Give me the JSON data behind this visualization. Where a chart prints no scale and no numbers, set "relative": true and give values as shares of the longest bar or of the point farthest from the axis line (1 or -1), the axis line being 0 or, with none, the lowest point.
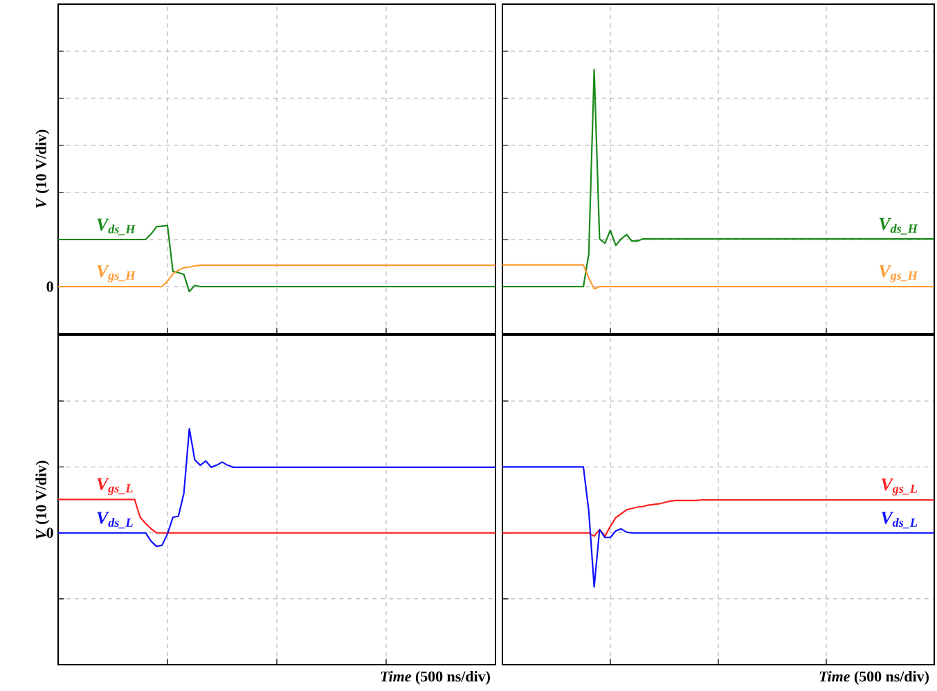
{
  "chart_data": [
    {
      "type": "line",
      "relative": true,
      "ylabel": "*V* (10 V/div)",
      "annotations": [
        "0"
      ],
      "grid": true,
      "categories": [
        null,
        null,
        null,
        null,
        null,
        null,
        null,
        null,
        null,
        null,
        null,
        null,
        null,
        null,
        null,
        null,
        null,
        null,
        null,
        null,
        null,
        null,
        null,
        null,
        null,
        null,
        null,
        null,
        null,
        null,
        null,
        null,
        null,
        null,
        null,
        null,
        null,
        null,
        null,
        null,
        null,
        null,
        null,
        null,
        null,
        null,
        null,
        null,
        null,
        null,
        null,
        null,
        null,
        null,
        null,
        null,
        null,
        null,
        null,
        null,
        null,
        null,
        null,
        null,
        null,
        null,
        null,
        null,
        null,
        null,
        null,
        null,
        null,
        null,
        null,
        null,
        null,
        null,
        null,
        null,
        null
      ],
      "series": [
        {
          "name": "V$_{ds_H}$",
          "color": "#1a8a1a",
          "values": [
            0.77,
            0.77,
            0.77,
            0.77,
            0.77,
            0.77,
            0.77,
            0.77,
            0.77,
            0.77,
            0.77,
            0.77,
            0.77,
            0.77,
            0.77,
            0.77,
            0.77,
            0.86,
            0.98,
            0.99,
            1,
            0.25,
            0.23,
            0.2,
            -0.08,
            0.02,
            0,
            0,
            0,
            0,
            0,
            0,
            0,
            0,
            0,
            0,
            0,
            0,
            0,
            0,
            0,
            0,
            0,
            0,
            0,
            0,
            0,
            0,
            0,
            0,
            0,
            0,
            0,
            0,
            0,
            0,
            0,
            0,
            0,
            0,
            0,
            0,
            0,
            0,
            0,
            0,
            0,
            0,
            0,
            0,
            0,
            0,
            0,
            0,
            0,
            0,
            0,
            0,
            0,
            0,
            0
          ]
        },
        {
          "name": "V$_{gs_H}$",
          "color": "#ff9a2e",
          "values": [
            0,
            0,
            0,
            0,
            0,
            0,
            0,
            0,
            0,
            0,
            0,
            0,
            0,
            0,
            0,
            0,
            0,
            0,
            0,
            0,
            0.09,
            0.21,
            0.27,
            0.31,
            0.32,
            0.34,
            0.35,
            0.35,
            0.35,
            0.35,
            0.35,
            0.35,
            0.35,
            0.35,
            0.35,
            0.35,
            0.35,
            0.35,
            0.35,
            0.35,
            0.35,
            0.35,
            0.35,
            0.35,
            0.35,
            0.35,
            0.35,
            0.35,
            0.35,
            0.35,
            0.35,
            0.35,
            0.35,
            0.35,
            0.35,
            0.35,
            0.35,
            0.35,
            0.35,
            0.35,
            0.35,
            0.35,
            0.35,
            0.35,
            0.35,
            0.35,
            0.35,
            0.35,
            0.35,
            0.35,
            0.35,
            0.35,
            0.35,
            0.35,
            0.35,
            0.35,
            0.35,
            0.35,
            0.35,
            0.35,
            0.35
          ]
        }
      ]
    },
    {
      "type": "line",
      "relative": true,
      "grid": true,
      "categories": [
        null,
        null,
        null,
        null,
        null,
        null,
        null,
        null,
        null,
        null,
        null,
        null,
        null,
        null,
        null,
        null,
        null,
        null,
        null,
        null,
        null,
        null,
        null,
        null,
        null,
        null,
        null,
        null,
        null,
        null,
        null,
        null,
        null,
        null,
        null,
        null,
        null,
        null,
        null,
        null,
        null,
        null,
        null,
        null,
        null,
        null,
        null,
        null,
        null,
        null,
        null,
        null,
        null,
        null,
        null,
        null,
        null,
        null,
        null,
        null,
        null,
        null,
        null,
        null,
        null,
        null,
        null,
        null,
        null,
        null,
        null,
        null,
        null,
        null,
        null,
        null,
        null,
        null,
        null,
        null,
        null
      ],
      "series": [
        {
          "name": "V$_{ds_H}$",
          "color": "#1a8a1a",
          "values": [
            0,
            0,
            0,
            0,
            0,
            0,
            0,
            0,
            0,
            0,
            0,
            0,
            0,
            0,
            0,
            0,
            0.15,
            1,
            0.22,
            0.2,
            0.26,
            0.19,
            0.22,
            0.24,
            0.21,
            0.21,
            0.22,
            0.22,
            0.22,
            0.22,
            0.22,
            0.22,
            0.22,
            0.22,
            0.22,
            0.22,
            0.22,
            0.22,
            0.22,
            0.22,
            0.22,
            0.22,
            0.22,
            0.22,
            0.22,
            0.22,
            0.22,
            0.22,
            0.22,
            0.22,
            0.22,
            0.22,
            0.22,
            0.22,
            0.22,
            0.22,
            0.22,
            0.22,
            0.22,
            0.22,
            0.22,
            0.22,
            0.22,
            0.22,
            0.22,
            0.22,
            0.22,
            0.22,
            0.22,
            0.22,
            0.22,
            0.22,
            0.22,
            0.22,
            0.22,
            0.22,
            0.22,
            0.22,
            0.22,
            0.22,
            0.22
          ]
        },
        {
          "name": "V$_{gs_H}$",
          "color": "#ff9a2e",
          "values": [
            0.1,
            0.1,
            0.1,
            0.1,
            0.1,
            0.1,
            0.1,
            0.1,
            0.1,
            0.1,
            0.1,
            0.1,
            0.1,
            0.1,
            0.1,
            0.1,
            0.04,
            -0.01,
            0,
            0,
            0,
            0,
            0,
            0,
            0,
            0,
            0,
            0,
            0,
            0,
            0,
            0,
            0,
            0,
            0,
            0,
            0,
            0,
            0,
            0,
            0,
            0,
            0,
            0,
            0,
            0,
            0,
            0,
            0,
            0,
            0,
            0,
            0,
            0,
            0,
            0,
            0,
            0,
            0,
            0,
            0,
            0,
            0,
            0,
            0,
            0,
            0,
            0,
            0,
            0,
            0,
            0,
            0,
            0,
            0,
            0,
            0,
            0,
            0,
            0,
            0
          ]
        }
      ]
    },
    {
      "type": "line",
      "relative": true,
      "ylabel": "*V* (10 V/div)",
      "xlabel": "*Time* (500 ns/div)",
      "annotations": [
        "0"
      ],
      "grid": true,
      "categories": [
        null,
        null,
        null,
        null,
        null,
        null,
        null,
        null,
        null,
        null,
        null,
        null,
        null,
        null,
        null,
        null,
        null,
        null,
        null,
        null,
        null,
        null,
        null,
        null,
        null,
        null,
        null,
        null,
        null,
        null,
        null,
        null,
        null,
        null,
        null,
        null,
        null,
        null,
        null,
        null,
        null,
        null,
        null,
        null,
        null,
        null,
        null,
        null,
        null,
        null,
        null,
        null,
        null,
        null,
        null,
        null,
        null,
        null,
        null,
        null,
        null,
        null,
        null,
        null,
        null,
        null,
        null,
        null,
        null,
        null,
        null,
        null,
        null,
        null,
        null,
        null,
        null,
        null,
        null,
        null,
        null
      ],
      "series": [
        {
          "name": "V$_{gs_L}$",
          "color": "#ff2020",
          "values": [
            0.32,
            0.32,
            0.32,
            0.32,
            0.32,
            0.32,
            0.32,
            0.32,
            0.32,
            0.32,
            0.32,
            0.32,
            0.32,
            0.32,
            0.32,
            0.15,
            0.09,
            0.04,
            0,
            0,
            0,
            0,
            0,
            0,
            0,
            0,
            0,
            0,
            0,
            0,
            0,
            0,
            0,
            0,
            0,
            0,
            0,
            0,
            0,
            0,
            0,
            0,
            0,
            0,
            0,
            0,
            0,
            0,
            0,
            0,
            0,
            0,
            0,
            0,
            0,
            0,
            0,
            0,
            0,
            0,
            0,
            0,
            0,
            0,
            0,
            0,
            0,
            0,
            0,
            0,
            0,
            0,
            0,
            0,
            0,
            0,
            0,
            0,
            0,
            0,
            0
          ]
        },
        {
          "name": "V$_{ds_L}$",
          "color": "#1010ff",
          "values": [
            0,
            0,
            0,
            0,
            0,
            0,
            0,
            0,
            0,
            0,
            0,
            0,
            0,
            0,
            0,
            0,
            0,
            -0.08,
            -0.13,
            -0.12,
            -0.01,
            0.15,
            0.16,
            0.38,
            1,
            0.7,
            0.65,
            0.69,
            0.63,
            0.65,
            0.68,
            0.65,
            0.63,
            0.63,
            0.63,
            0.63,
            0.63,
            0.63,
            0.63,
            0.63,
            0.63,
            0.63,
            0.63,
            0.63,
            0.63,
            0.63,
            0.63,
            0.63,
            0.63,
            0.63,
            0.63,
            0.63,
            0.63,
            0.63,
            0.63,
            0.63,
            0.63,
            0.63,
            0.63,
            0.63,
            0.63,
            0.63,
            0.63,
            0.63,
            0.63,
            0.63,
            0.63,
            0.63,
            0.63,
            0.63,
            0.63,
            0.63,
            0.63,
            0.63,
            0.63,
            0.63,
            0.63,
            0.63,
            0.63,
            0.63,
            0.63
          ]
        }
      ]
    },
    {
      "type": "line",
      "relative": true,
      "xlabel": "*Time* (500 ns/div)",
      "grid": true,
      "categories": [
        null,
        null,
        null,
        null,
        null,
        null,
        null,
        null,
        null,
        null,
        null,
        null,
        null,
        null,
        null,
        null,
        null,
        null,
        null,
        null,
        null,
        null,
        null,
        null,
        null,
        null,
        null,
        null,
        null,
        null,
        null,
        null,
        null,
        null,
        null,
        null,
        null,
        null,
        null,
        null,
        null,
        null,
        null,
        null,
        null,
        null,
        null,
        null,
        null,
        null,
        null,
        null,
        null,
        null,
        null,
        null,
        null,
        null,
        null,
        null,
        null,
        null,
        null,
        null,
        null,
        null,
        null,
        null,
        null,
        null,
        null,
        null,
        null,
        null,
        null,
        null,
        null,
        null,
        null,
        null,
        null
      ],
      "series": [
        {
          "name": "V$_{gs_L}$",
          "color": "#ff2020",
          "values": [
            0,
            0,
            0,
            0,
            0,
            0,
            0,
            0,
            0,
            0,
            0,
            0,
            0,
            0,
            0,
            0,
            0,
            -0.05,
            0.05,
            -0.05,
            0.1,
            0.23,
            0.29,
            0.35,
            0.37,
            0.39,
            0.4,
            0.42,
            0.43,
            0.44,
            0.46,
            0.48,
            0.49,
            0.49,
            0.49,
            0.49,
            0.49,
            0.5,
            0.5,
            0.5,
            0.5,
            0.5,
            0.5,
            0.5,
            0.5,
            0.5,
            0.5,
            0.5,
            0.5,
            0.5,
            0.5,
            0.5,
            0.5,
            0.5,
            0.5,
            0.5,
            0.5,
            0.5,
            0.5,
            0.5,
            0.5,
            0.5,
            0.5,
            0.5,
            0.5,
            0.5,
            0.5,
            0.5,
            0.5,
            0.5,
            0.5,
            0.5,
            0.5,
            0.5,
            0.5,
            0.5,
            0.5,
            0.5,
            0.5,
            0.5,
            0.5
          ]
        },
        {
          "name": "V$_{ds_L}$",
          "color": "#1010ff",
          "values": [
            1,
            1,
            1,
            1,
            1,
            1,
            1,
            1,
            1,
            1,
            1,
            1,
            1,
            1,
            1,
            1,
            0.33,
            -0.82,
            0.05,
            -0.07,
            -0.07,
            0.03,
            0.06,
            0.01,
            0,
            0,
            0,
            0,
            0,
            0,
            0,
            0,
            0,
            0,
            0,
            0,
            0,
            0,
            0,
            0,
            0,
            0,
            0,
            0,
            0,
            0,
            0,
            0,
            0,
            0,
            0,
            0,
            0,
            0,
            0,
            0,
            0,
            0,
            0,
            0,
            0,
            0,
            0,
            0,
            0,
            0,
            0,
            0,
            0,
            0,
            0,
            0,
            0,
            0,
            0,
            0,
            0,
            0,
            0,
            0,
            0
          ]
        }
      ]
    }
  ]
}
